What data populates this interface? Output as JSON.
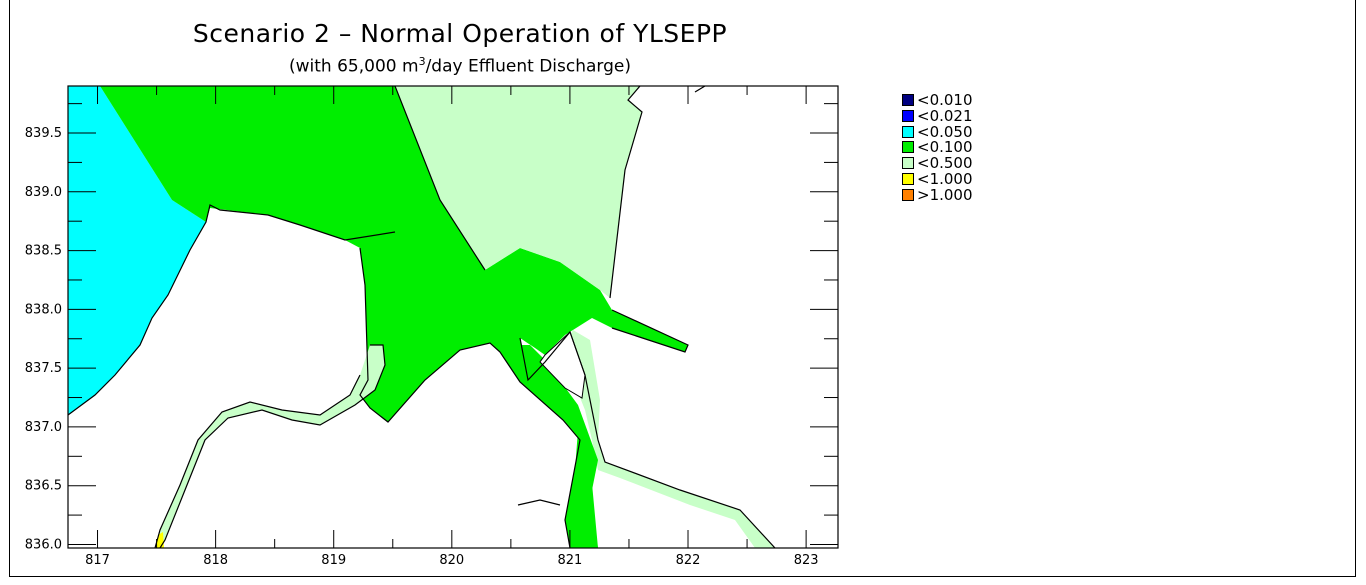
{
  "title": "Scenario 2 – Normal Operation of YLSEPP",
  "subtitle_pre": "(with 65,000 m",
  "subtitle_sup": "3",
  "subtitle_post": "/day Effluent Discharge)",
  "x_ticks": [
    "817",
    "818",
    "819",
    "820",
    "821",
    "822",
    "823"
  ],
  "y_ticks": [
    "836.0",
    "836.5",
    "837.0",
    "837.5",
    "838.0",
    "838.5",
    "839.0",
    "839.5"
  ],
  "legend": [
    {
      "label": "<0.010",
      "color": "#000080"
    },
    {
      "label": "<0.021",
      "color": "#0000ff"
    },
    {
      "label": "<0.050",
      "color": "#00ffff"
    },
    {
      "label": "<0.100",
      "color": "#00ee00"
    },
    {
      "label": "<0.500",
      "color": "#c8ffc8"
    },
    {
      "label": "<1.000",
      "color": "#ffff00"
    },
    {
      "label": ">1.000",
      "color": "#ff8000"
    }
  ]
}
